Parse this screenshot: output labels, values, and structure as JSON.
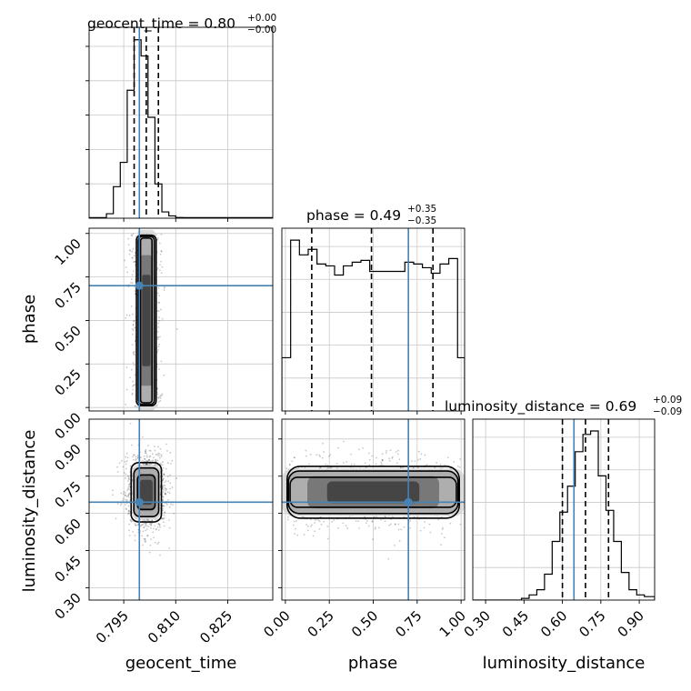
{
  "chart_data": {
    "type": "corner",
    "parameters": [
      "geocent_time",
      "phase",
      "luminosity_distance"
    ],
    "injection": {
      "geocent_time": 0.7995,
      "phase": 0.7,
      "luminosity_distance": 0.645
    },
    "titles": {
      "geocent_time": {
        "main": "geocent_time = 0.80",
        "sup": "+0.00",
        "sub": "−0.00"
      },
      "phase": {
        "main": "phase = 0.49",
        "sup": "+0.35",
        "sub": "−0.35"
      },
      "luminosity_distance": {
        "main": "luminosity_distance = 0.69",
        "sup": "+0.09",
        "sub": "−0.09"
      }
    },
    "xlim": {
      "geocent_time": [
        0.785,
        0.838
      ],
      "phase": [
        -0.02,
        1.02
      ],
      "luminosity_distance": [
        0.25,
        0.96
      ]
    },
    "ticks": {
      "geocent_time": {
        "values": [
          0.795,
          0.81,
          0.825
        ],
        "labels": [
          "0.795",
          "0.810",
          "0.825"
        ]
      },
      "phase": {
        "values": [
          0.0,
          0.25,
          0.5,
          0.75,
          1.0
        ],
        "labels": [
          "0.00",
          "0.25",
          "0.50",
          "0.75",
          "1.00"
        ]
      },
      "luminosity_distance": {
        "values": [
          0.3,
          0.45,
          0.6,
          0.75,
          0.9
        ],
        "labels": [
          "0.30",
          "0.45",
          "0.60",
          "0.75",
          "0.90"
        ]
      }
    },
    "quantiles": {
      "geocent_time": [
        0.798,
        0.8015,
        0.805
      ],
      "phase": [
        0.15,
        0.49,
        0.84
      ],
      "luminosity_distance": [
        0.6,
        0.69,
        0.78
      ]
    },
    "histograms": {
      "geocent_time": {
        "edges": [
          0.785,
          0.79,
          0.792,
          0.794,
          0.796,
          0.798,
          0.8,
          0.802,
          0.804,
          0.806,
          0.808,
          0.81,
          0.812,
          0.814,
          0.816,
          0.838
        ],
        "counts": [
          0.3,
          2.5,
          17.5,
          31,
          71,
          99,
          90,
          56,
          19,
          3.5,
          1.3,
          0.4,
          0.3,
          0.3,
          0.3
        ]
      },
      "phase": {
        "edges": [
          -0.02,
          0.03,
          0.08,
          0.13,
          0.18,
          0.23,
          0.28,
          0.33,
          0.38,
          0.43,
          0.48,
          0.53,
          0.58,
          0.63,
          0.68,
          0.73,
          0.78,
          0.83,
          0.88,
          0.93,
          0.98,
          1.02
        ],
        "counts": [
          29,
          93,
          85,
          88,
          80,
          79,
          74,
          79,
          81,
          82,
          76,
          76,
          76,
          76,
          81,
          80,
          78,
          75,
          80,
          83,
          29
        ]
      },
      "luminosity_distance": {
        "edges": [
          0.25,
          0.44,
          0.47,
          0.5,
          0.53,
          0.56,
          0.59,
          0.62,
          0.65,
          0.68,
          0.71,
          0.74,
          0.77,
          0.8,
          0.83,
          0.86,
          0.89,
          0.92,
          0.96
        ],
        "counts": [
          0,
          1,
          3,
          6,
          15,
          34,
          51,
          66,
          86,
          96,
          98,
          72,
          52,
          34,
          16,
          6,
          3,
          2
        ]
      }
    },
    "density_contours": [
      {
        "x": "geocent_time",
        "y": "phase",
        "center": [
          0.8015,
          0.51
        ],
        "sigma": [
          0.0015,
          0.27
        ]
      },
      {
        "x": "geocent_time",
        "y": "luminosity_distance",
        "center": [
          0.8015,
          0.685
        ],
        "sigma": [
          0.0023,
          0.063
        ]
      },
      {
        "x": "phase",
        "y": "luminosity_distance",
        "center": [
          0.49,
          0.685
        ],
        "sigma": [
          0.29,
          0.055
        ]
      }
    ],
    "grid": true
  }
}
